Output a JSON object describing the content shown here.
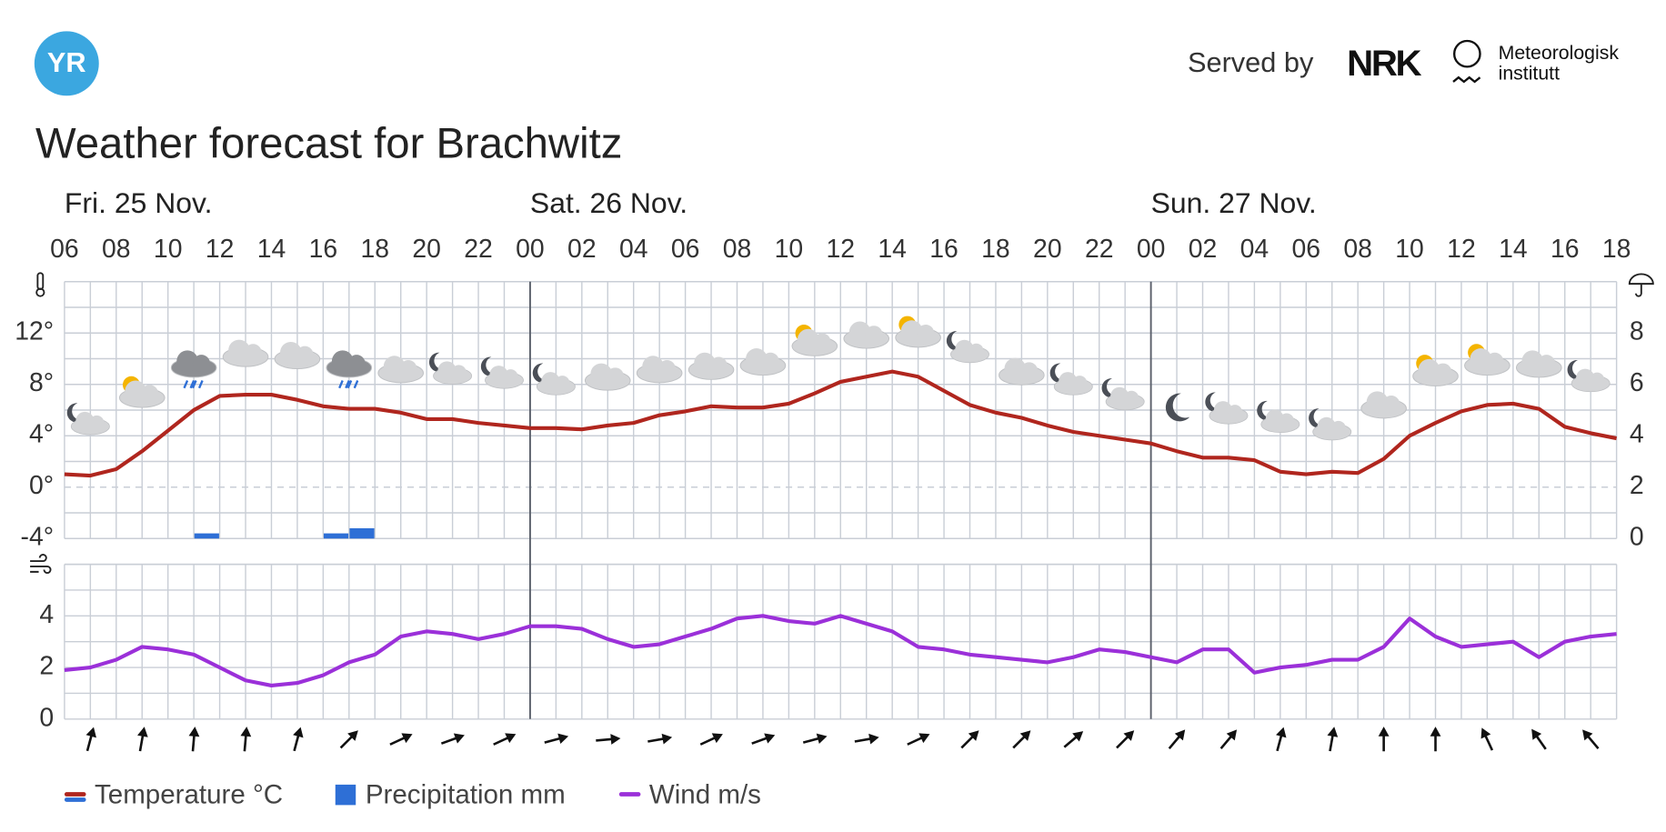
{
  "header": {
    "logo": "YR",
    "served_by": "Served by",
    "nrk": "NRK",
    "institute_1": "Meteorologisk",
    "institute_2": "institutt"
  },
  "chart_data": [
    {
      "type": "line",
      "title": "Weather forecast for Brachwitz",
      "days": [
        "Fri. 25 Nov.",
        "Sat. 26 Nov.",
        "Sun. 27 Nov."
      ],
      "categories": [
        "06",
        null,
        "08",
        null,
        "10",
        null,
        "12",
        null,
        "14",
        null,
        "16",
        null,
        "18",
        null,
        "20",
        null,
        "22",
        null,
        "00",
        null,
        "02",
        null,
        "04",
        null,
        "06",
        null,
        "08",
        null,
        "10",
        null,
        "12",
        null,
        "14",
        null,
        "16",
        null,
        "18",
        null,
        "20",
        null,
        "22",
        null,
        "00",
        null,
        "02",
        null,
        "04",
        null,
        "06",
        null,
        "08",
        null,
        "10",
        null,
        "12",
        null,
        "14",
        null,
        "16",
        null,
        "18"
      ],
      "series": [
        {
          "name": "Temperature °C",
          "color": "#b0261e",
          "values": [
            1.0,
            0.9,
            1.4,
            2.8,
            4.4,
            6.0,
            7.1,
            7.2,
            7.2,
            6.8,
            6.3,
            6.1,
            6.1,
            5.8,
            5.3,
            5.3,
            5.0,
            4.8,
            4.6,
            4.6,
            4.5,
            4.8,
            5.0,
            5.6,
            5.9,
            6.3,
            6.2,
            6.2,
            6.5,
            7.3,
            8.2,
            8.6,
            9.0,
            8.6,
            7.5,
            6.4,
            5.8,
            5.4,
            4.8,
            4.3,
            4.0,
            3.7,
            3.4,
            2.8,
            2.3,
            2.3,
            2.1,
            1.2,
            1.0,
            1.2,
            1.1,
            2.2,
            4.0,
            5.0,
            5.9,
            6.4,
            6.5,
            6.1,
            4.7,
            4.2,
            3.8
          ]
        },
        {
          "name": "Precipitation mm",
          "color": "#2e6fd6",
          "type": "bar",
          "axis": "y2",
          "values": [
            0,
            0,
            0,
            0,
            0,
            0.2,
            0,
            0,
            0,
            0,
            0.2,
            0.4,
            0,
            0,
            0,
            0,
            0,
            0,
            0,
            0,
            0,
            0,
            0,
            0,
            0,
            0,
            0,
            0,
            0,
            0,
            0,
            0,
            0,
            0,
            0,
            0,
            0,
            0,
            0,
            0,
            0,
            0,
            0,
            0,
            0,
            0,
            0,
            0,
            0,
            0,
            0,
            0,
            0,
            0,
            0,
            0,
            0,
            0,
            0,
            0,
            0
          ]
        }
      ],
      "ylim": [
        -4,
        16
      ],
      "yticks": [
        {
          "value": -4,
          "label": "-4°"
        },
        {
          "value": 0,
          "label": "0°"
        },
        {
          "value": 4,
          "label": "4°"
        },
        {
          "value": 8,
          "label": "8°"
        },
        {
          "value": 12,
          "label": "12°"
        }
      ],
      "y2lim": [
        0,
        10
      ],
      "y2ticks": [
        0,
        2,
        4,
        6,
        8
      ],
      "grid": true
    },
    {
      "type": "line",
      "series": [
        {
          "name": "Wind m/s",
          "color": "#9b30d9",
          "values": [
            1.9,
            2.0,
            2.3,
            2.8,
            2.7,
            2.5,
            2.0,
            1.5,
            1.3,
            1.4,
            1.7,
            2.2,
            2.5,
            3.2,
            3.4,
            3.3,
            3.1,
            3.3,
            3.6,
            3.6,
            3.5,
            3.1,
            2.8,
            2.9,
            3.2,
            3.5,
            3.9,
            4.0,
            3.8,
            3.7,
            4.0,
            3.7,
            3.4,
            2.8,
            2.7,
            2.5,
            2.4,
            2.3,
            2.2,
            2.4,
            2.7,
            2.6,
            2.4,
            2.2,
            2.7,
            2.7,
            1.8,
            2.0,
            2.1,
            2.3,
            2.3,
            2.8,
            3.9,
            3.2,
            2.8,
            2.9,
            3.0,
            2.4,
            3.0,
            3.2,
            3.3
          ]
        }
      ],
      "wind_direction": [
        null,
        15,
        null,
        10,
        null,
        5,
        null,
        5,
        null,
        15,
        null,
        45,
        null,
        65,
        null,
        70,
        null,
        65,
        null,
        75,
        null,
        85,
        null,
        80,
        null,
        65,
        null,
        70,
        null,
        75,
        null,
        80,
        null,
        65,
        null,
        45,
        null,
        45,
        null,
        50,
        null,
        45,
        null,
        40,
        null,
        40,
        null,
        15,
        null,
        10,
        null,
        0,
        null,
        0,
        null,
        -25,
        null,
        -35,
        null,
        -40,
        null
      ],
      "ylim": [
        0,
        6
      ],
      "yticks": [
        0,
        2,
        4
      ],
      "grid": true
    }
  ]
}
